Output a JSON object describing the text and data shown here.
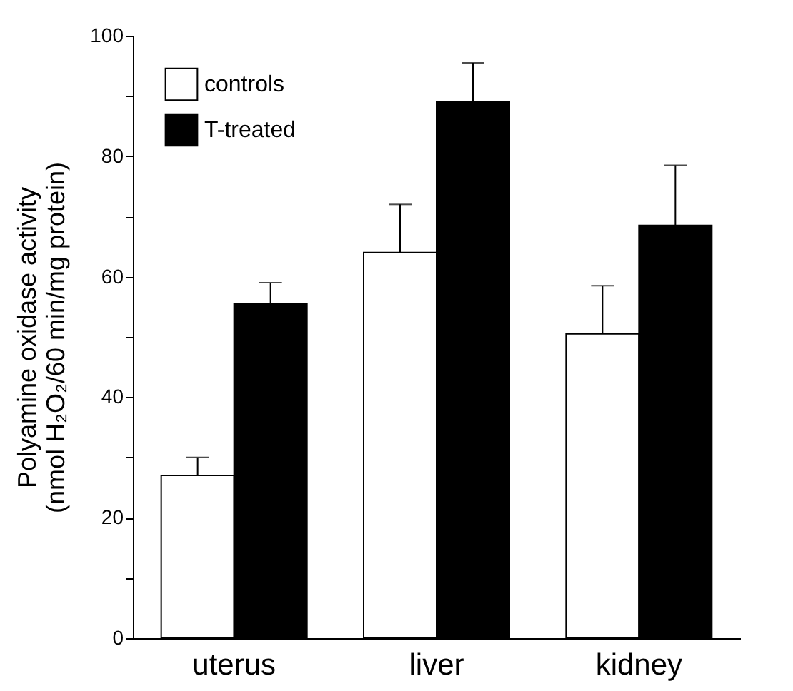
{
  "chart_data": {
    "type": "bar",
    "ylabel": "Polyamine oxidase activity\n(nmol H₂O₂/60 min/mg protein)",
    "categories": [
      "uterus",
      "liver",
      "kidney"
    ],
    "series": [
      {
        "name": "controls",
        "color": "#ffffff",
        "values": [
          27,
          64,
          50.5
        ],
        "errors": [
          3,
          8,
          8
        ]
      },
      {
        "name": "T-treated",
        "color": "#000000",
        "values": [
          55.5,
          89,
          68.5
        ],
        "errors": [
          3.5,
          6.5,
          10
        ]
      }
    ],
    "ylim": [
      0,
      100
    ],
    "yticks": [
      0,
      {
        "value": 10,
        "label": null
      },
      20,
      {
        "value": 30,
        "label": null
      },
      40,
      {
        "value": 50,
        "label": null
      },
      60,
      {
        "value": 70,
        "label": null
      },
      80,
      {
        "value": 90,
        "label": null
      },
      100
    ],
    "legend": "top left",
    "grid": false
  }
}
